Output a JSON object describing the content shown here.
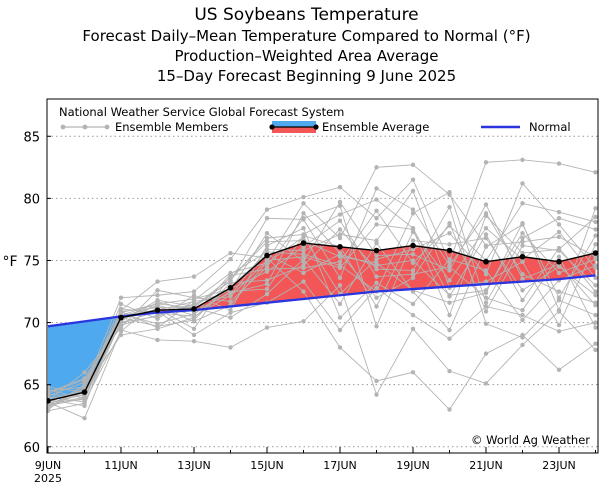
{
  "chart_data": {
    "type": "line",
    "title": "US Soybeans Temperature",
    "subtitle_lines": [
      "Forecast Daily–Mean Temperature Compared to Normal (°F)",
      "Production–Weighted Area Average",
      "15–Day Forecast Beginning 9 June 2025"
    ],
    "ylabel": "°F",
    "ylim": [
      59.5,
      88
    ],
    "yticks": [
      60,
      65,
      70,
      75,
      80,
      85
    ],
    "x": [
      "9JUN",
      "10JUN",
      "11JUN",
      "12JUN",
      "13JUN",
      "14JUN",
      "15JUN",
      "16JUN",
      "17JUN",
      "18JUN",
      "19JUN",
      "20JUN",
      "21JUN",
      "22JUN",
      "23JUN",
      "24JUN"
    ],
    "xtick_labels": [
      "9JUN",
      "11JUN",
      "13JUN",
      "15JUN",
      "17JUN",
      "19JUN",
      "21JUN",
      "23JUN"
    ],
    "xtick_sub": "2025",
    "source_label": "National Weather Service Global Forecast System",
    "legend": {
      "members": "Ensemble Members",
      "average": "Ensemble Average",
      "normal": "Normal"
    },
    "series": [
      {
        "name": "Ensemble Average",
        "values": [
          63.7,
          64.4,
          70.4,
          71.0,
          71.1,
          72.8,
          75.4,
          76.4,
          76.1,
          75.8,
          76.2,
          75.8,
          74.9,
          75.3,
          74.9,
          75.6
        ]
      },
      {
        "name": "Normal",
        "values": [
          69.7,
          70.1,
          70.5,
          70.8,
          71.0,
          71.3,
          71.6,
          71.9,
          72.2,
          72.5,
          72.7,
          72.9,
          73.1,
          73.3,
          73.5,
          73.8
        ]
      }
    ],
    "members": [
      [
        63.4,
        64.0,
        70.6,
        71.5,
        71.2,
        73.4,
        76.8,
        77.1,
        78.7,
        79.9,
        77.6,
        72.1,
        77.1,
        71.8,
        76.0,
        72.5
      ],
      [
        63.4,
        64.6,
        69.0,
        69.5,
        70.4,
        72.9,
        75.5,
        74.0,
        75.5,
        74.6,
        75.0,
        72.2,
        72.6,
        77.2,
        74.0,
        75.1
      ],
      [
        64.6,
        63.9,
        70.4,
        71.0,
        71.7,
        72.1,
        75.0,
        75.3,
        74.4,
        77.9,
        77.5,
        70.6,
        78.6,
        75.6,
        75.9,
        78.5
      ],
      [
        64.0,
        63.6,
        69.3,
        71.7,
        70.9,
        72.4,
        73.1,
        78.8,
        75.6,
        72.0,
        73.6,
        78.0,
        70.9,
        76.2,
        75.8,
        73.0
      ],
      [
        64.4,
        65.5,
        70.4,
        69.7,
        70.2,
        73.2,
        73.4,
        74.6,
        77.5,
        74.3,
        74.2,
        79.3,
        69.9,
        68.8,
        71.8,
        70.6
      ],
      [
        64.1,
        65.2,
        70.2,
        71.4,
        70.6,
        73.9,
        75.7,
        75.5,
        74.6,
        72.5,
        78.8,
        80.5,
        71.6,
        76.8,
        78.4,
        77.5
      ],
      [
        63.8,
        63.3,
        70.8,
        71.5,
        71.9,
        72.7,
        74.1,
        76.1,
        78.2,
        73.7,
        73.9,
        74.5,
        72.0,
        71.0,
        75.3,
        69.6
      ],
      [
        63.2,
        64.7,
        70.9,
        71.2,
        71.2,
        70.4,
        72.3,
        75.1,
        71.5,
        76.4,
        72.5,
        69.4,
        76.1,
        77.9,
        72.0,
        77.0
      ],
      [
        63.5,
        64.2,
        70.0,
        70.5,
        71.4,
        73.3,
        78.4,
        78.3,
        73.6,
        80.8,
        79.1,
        74.6,
        78.8,
        73.9,
        72.5,
        71.6
      ],
      [
        63.0,
        64.9,
        70.9,
        69.6,
        71.8,
        74.0,
        74.8,
        76.9,
        72.3,
        75.1,
        75.9,
        77.2,
        73.9,
        81.2,
        77.9,
        74.4
      ],
      [
        64.2,
        64.1,
        71.1,
        70.8,
        70.5,
        72.2,
        75.9,
        75.8,
        77.1,
        76.6,
        80.6,
        72.8,
        73.3,
        74.9,
        69.8,
        76.3
      ],
      [
        63.7,
        66.0,
        69.6,
        72.6,
        72.0,
        71.7,
        74.5,
        78.4,
        79.4,
        69.7,
        76.6,
        76.3,
        76.8,
        72.6,
        74.5,
        72.2
      ],
      [
        63.6,
        63.8,
        70.3,
        71.1,
        69.5,
        73.8,
        74.3,
        74.4,
        74.9,
        79.0,
        74.8,
        77.8,
        75.0,
        79.6,
        78.9,
        78.1
      ],
      [
        64.8,
        64.4,
        71.5,
        70.3,
        72.2,
        71.0,
        76.2,
        77.6,
        70.4,
        73.2,
        71.5,
        75.1,
        74.2,
        70.2,
        73.4,
        74.6
      ],
      [
        63.1,
        65.0,
        70.7,
        69.9,
        70.7,
        72.5,
        72.7,
        77.0,
        76.1,
        71.3,
        77.3,
        73.4,
        77.6,
        75.1,
        77.3,
        73.6
      ],
      [
        62.9,
        63.5,
        70.1,
        71.8,
        71.3,
        73.6,
        76.5,
        76.6,
        75.3,
        74.8,
        72.6,
        71.6,
        72.4,
        78.0,
        71.0,
        79.2
      ],
      [
        64.3,
        65.4,
        69.8,
        70.6,
        71.5,
        72.6,
        77.2,
        74.9,
        79.7,
        75.4,
        75.5,
        74.2,
        79.5,
        73.5,
        74.7,
        71.4
      ],
      [
        63.9,
        64.3,
        70.5,
        71.3,
        70.1,
        71.4,
        74.9,
        79.6,
        76.8,
        82.5,
        82.7,
        80.3,
        76.2,
        76.5,
        76.9,
        75.3
      ],
      [
        63.3,
        63.9,
        71.0,
        73.3,
        73.7,
        75.6,
        75.2,
        72.5,
        68.0,
        65.3,
        66.0,
        63.0,
        67.5,
        69.0,
        66.2,
        68.3
      ],
      [
        63.6,
        62.3,
        69.4,
        68.6,
        68.5,
        68.0,
        69.6,
        70.1,
        73.0,
        64.2,
        69.5,
        66.1,
        65.1,
        68.2,
        70.9,
        67.8
      ],
      [
        64.5,
        64.8,
        72.0,
        72.2,
        72.5,
        75.1,
        79.1,
        80.1,
        80.9,
        78.4,
        81.5,
        74.9,
        82.9,
        83.1,
        82.8,
        82.1
      ],
      [
        63.2,
        64.5,
        70.0,
        70.9,
        69.0,
        70.8,
        71.6,
        73.3,
        69.4,
        72.8,
        70.6,
        68.7,
        71.3,
        70.6,
        69.3,
        70.0
      ]
    ]
  },
  "watermark": "© World Ag Weather",
  "colors": {
    "members": "#b4b4b4",
    "average_line": "#000000",
    "above_fill": "#f25656",
    "below_fill": "#4ea9ee",
    "normal_line": "#2a35e0",
    "grid": "#9a9a9a"
  }
}
